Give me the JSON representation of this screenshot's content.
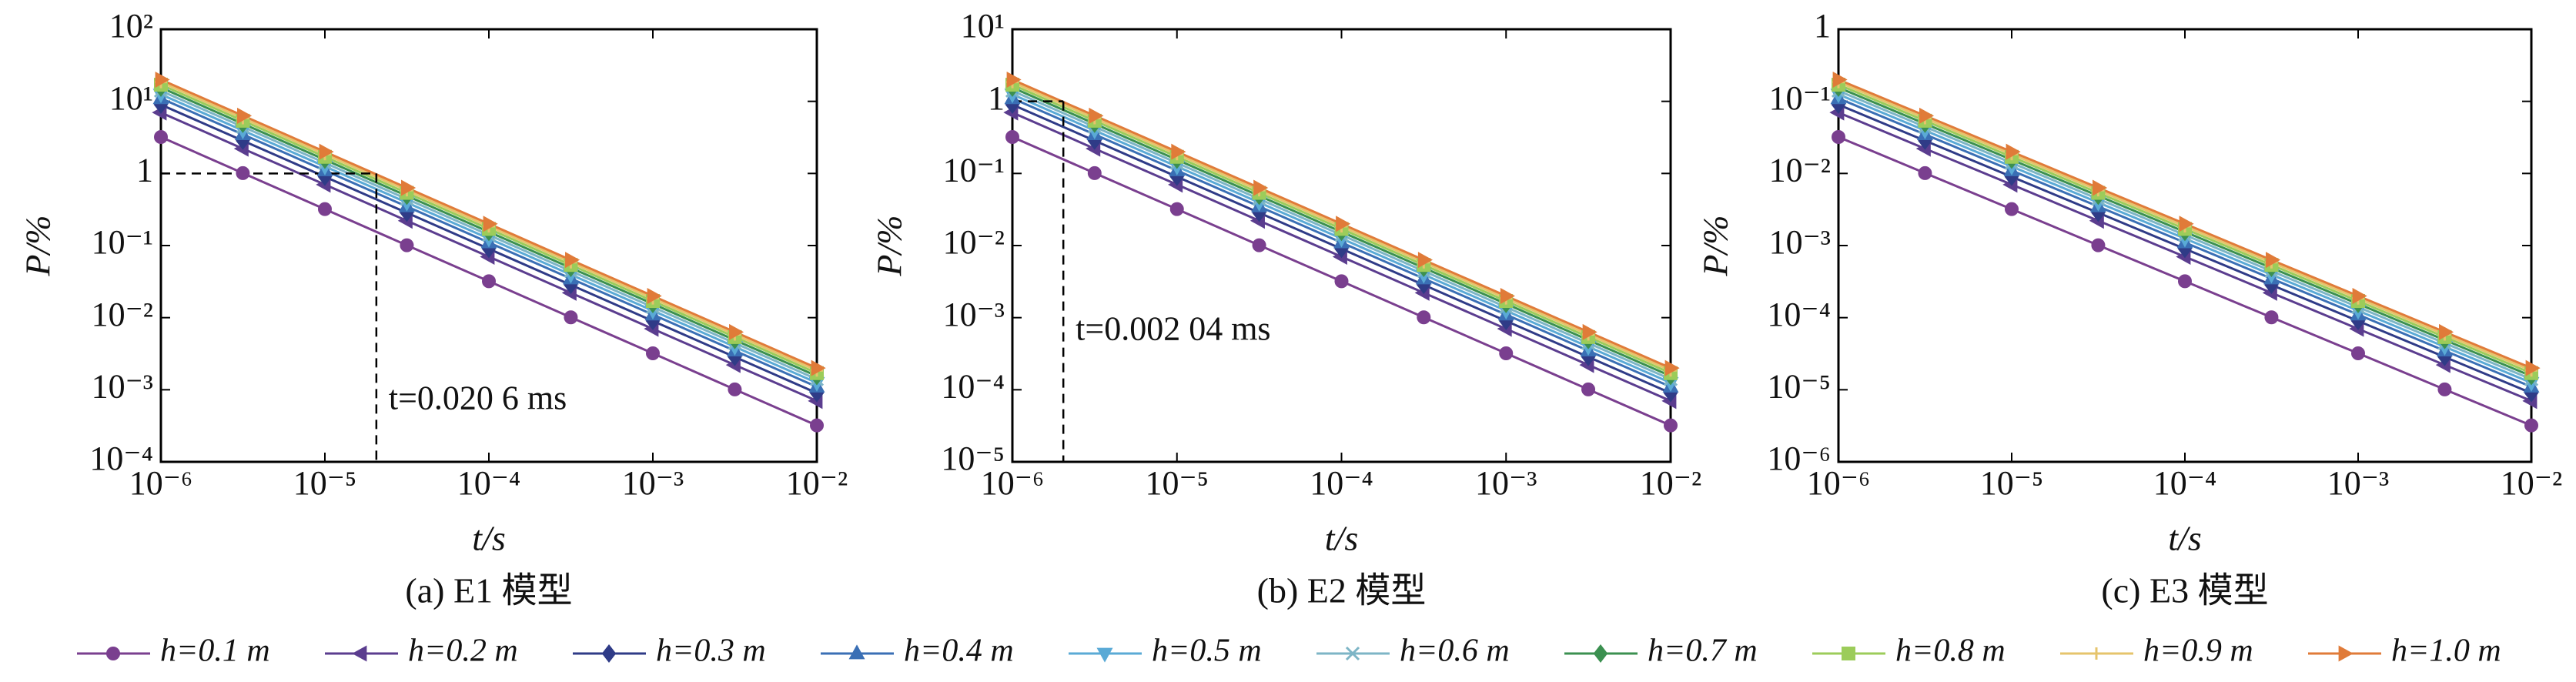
{
  "chart_data": [
    {
      "type": "line",
      "log_x": true,
      "log_y": true,
      "x_label": "t/s",
      "y_label": "P/%",
      "caption": "(a) E1 模型",
      "xlim": [
        1e-06,
        0.01
      ],
      "xticks": [
        {
          "value": 1e-06,
          "label": "10⁻⁶"
        },
        {
          "value": 1e-05,
          "label": "10⁻⁵"
        },
        {
          "value": 0.0001,
          "label": "10⁻⁴"
        },
        {
          "value": 0.001,
          "label": "10⁻³"
        },
        {
          "value": 0.01,
          "label": "10⁻²"
        }
      ],
      "ylim": [
        0.0001,
        100
      ],
      "yticks": [
        {
          "value": 0.0001,
          "label": "10⁻⁴"
        },
        {
          "value": 0.001,
          "label": "10⁻³"
        },
        {
          "value": 0.01,
          "label": "10⁻²"
        },
        {
          "value": 0.1,
          "label": "10⁻¹"
        },
        1,
        {
          "value": 10,
          "label": "10¹"
        },
        {
          "value": 100,
          "label": "10²"
        }
      ],
      "annotation": {
        "text": "t=0.020 6 ms",
        "x": 2.06e-05,
        "y": 1
      },
      "x": [
        1e-06,
        3.16e-06,
        1e-05,
        3.16e-05,
        0.0001,
        0.000316,
        0.001,
        0.00316,
        0.01
      ],
      "series": [
        {
          "name": "h=0.1 m",
          "color": "#7a3f8f",
          "marker": "circle",
          "values": [
            3.2,
            1.01,
            0.32,
            0.101,
            0.032,
            0.0101,
            0.0032,
            0.00101,
            0.00032
          ]
        },
        {
          "name": "h=0.2 m",
          "color": "#5b3d8f",
          "marker": "tri-left",
          "values": [
            7,
            2.21,
            0.7,
            0.221,
            0.07,
            0.0221,
            0.007,
            0.00221,
            0.0007
          ]
        },
        {
          "name": "h=0.3 m",
          "color": "#2f3b87",
          "marker": "diamond",
          "values": [
            9,
            2.85,
            0.9,
            0.285,
            0.09,
            0.0285,
            0.009,
            0.00285,
            0.0009
          ]
        },
        {
          "name": "h=0.4 m",
          "color": "#3a6fb5",
          "marker": "tri-up",
          "values": [
            11,
            3.48,
            1.1,
            0.348,
            0.11,
            0.0348,
            0.011,
            0.00348,
            0.0011
          ]
        },
        {
          "name": "h=0.5 m",
          "color": "#5aaad6",
          "marker": "tri-down",
          "values": [
            12.5,
            3.95,
            1.25,
            0.395,
            0.125,
            0.0395,
            0.0125,
            0.00395,
            0.00125
          ]
        },
        {
          "name": "h=0.6 m",
          "color": "#7db5c6",
          "marker": "x",
          "values": [
            14,
            4.43,
            1.4,
            0.443,
            0.14,
            0.0443,
            0.014,
            0.00443,
            0.0014
          ]
        },
        {
          "name": "h=0.7 m",
          "color": "#3b9050",
          "marker": "diamond",
          "values": [
            15.5,
            4.9,
            1.55,
            0.49,
            0.155,
            0.049,
            0.0155,
            0.0049,
            0.00155
          ]
        },
        {
          "name": "h=0.8 m",
          "color": "#9ccc5a",
          "marker": "square",
          "values": [
            17,
            5.38,
            1.7,
            0.538,
            0.17,
            0.0538,
            0.017,
            0.00538,
            0.0017
          ]
        },
        {
          "name": "h=0.9 m",
          "color": "#e6c46c",
          "marker": "plus",
          "values": [
            18.5,
            5.85,
            1.85,
            0.585,
            0.185,
            0.0585,
            0.0185,
            0.00585,
            0.00185
          ]
        },
        {
          "name": "h=1.0 m",
          "color": "#e07b39",
          "marker": "tri-right",
          "values": [
            20,
            6.32,
            2,
            0.632,
            0.2,
            0.0632,
            0.02,
            0.00632,
            0.002
          ]
        }
      ]
    },
    {
      "type": "line",
      "log_x": true,
      "log_y": true,
      "x_label": "t/s",
      "y_label": "P/%",
      "caption": "(b) E2 模型",
      "xlim": [
        1e-06,
        0.01
      ],
      "xticks": [
        {
          "value": 1e-06,
          "label": "10⁻⁶"
        },
        {
          "value": 1e-05,
          "label": "10⁻⁵"
        },
        {
          "value": 0.0001,
          "label": "10⁻⁴"
        },
        {
          "value": 0.001,
          "label": "10⁻³"
        },
        {
          "value": 0.01,
          "label": "10⁻²"
        }
      ],
      "ylim": [
        1e-05,
        10
      ],
      "yticks": [
        {
          "value": 1e-05,
          "label": "10⁻⁵"
        },
        {
          "value": 0.0001,
          "label": "10⁻⁴"
        },
        {
          "value": 0.001,
          "label": "10⁻³"
        },
        {
          "value": 0.01,
          "label": "10⁻²"
        },
        {
          "value": 0.1,
          "label": "10⁻¹"
        },
        1,
        {
          "value": 10,
          "label": "10¹"
        }
      ],
      "annotation": {
        "text": "t=0.002 04 ms",
        "x": 2.04e-06,
        "y": 1
      },
      "x": [
        1e-06,
        3.16e-06,
        1e-05,
        3.16e-05,
        0.0001,
        0.000316,
        0.001,
        0.00316,
        0.01
      ],
      "series": [
        {
          "color": "#7a3f8f",
          "marker": "circle",
          "values": [
            0.32,
            0.101,
            0.032,
            0.0101,
            0.0032,
            0.00101,
            0.00032,
            0.000101,
            3.2e-05
          ]
        },
        {
          "color": "#5b3d8f",
          "marker": "tri-left",
          "values": [
            0.7,
            0.221,
            0.07,
            0.0221,
            0.007,
            0.00221,
            0.0007,
            0.000221,
            7e-05
          ]
        },
        {
          "color": "#2f3b87",
          "marker": "diamond",
          "values": [
            0.9,
            0.285,
            0.09,
            0.0285,
            0.009,
            0.00285,
            0.0009,
            0.000285,
            9e-05
          ]
        },
        {
          "color": "#3a6fb5",
          "marker": "tri-up",
          "values": [
            1.1,
            0.348,
            0.11,
            0.0348,
            0.011,
            0.00348,
            0.0011,
            0.000348,
            0.00011
          ]
        },
        {
          "color": "#5aaad6",
          "marker": "tri-down",
          "values": [
            1.25,
            0.395,
            0.125,
            0.0395,
            0.0125,
            0.00395,
            0.00125,
            0.000395,
            0.000125
          ]
        },
        {
          "color": "#7db5c6",
          "marker": "x",
          "values": [
            1.4,
            0.443,
            0.14,
            0.0443,
            0.014,
            0.00443,
            0.0014,
            0.000443,
            0.00014
          ]
        },
        {
          "color": "#3b9050",
          "marker": "diamond",
          "values": [
            1.55,
            0.49,
            0.155,
            0.049,
            0.0155,
            0.0049,
            0.00155,
            0.00049,
            0.000155
          ]
        },
        {
          "color": "#9ccc5a",
          "marker": "square",
          "values": [
            1.7,
            0.538,
            0.17,
            0.0538,
            0.017,
            0.00538,
            0.0017,
            0.000538,
            0.00017
          ]
        },
        {
          "color": "#e6c46c",
          "marker": "plus",
          "values": [
            1.85,
            0.585,
            0.185,
            0.0585,
            0.0185,
            0.00585,
            0.00185,
            0.000585,
            0.000185
          ]
        },
        {
          "color": "#e07b39",
          "marker": "tri-right",
          "values": [
            2,
            0.632,
            0.2,
            0.0632,
            0.02,
            0.00632,
            0.002,
            0.000632,
            0.0002
          ]
        }
      ]
    },
    {
      "type": "line",
      "log_x": true,
      "log_y": true,
      "x_label": "t/s",
      "y_label": "P/%",
      "caption": "(c) E3 模型",
      "xlim": [
        1e-06,
        0.01
      ],
      "xticks": [
        {
          "value": 1e-06,
          "label": "10⁻⁶"
        },
        {
          "value": 1e-05,
          "label": "10⁻⁵"
        },
        {
          "value": 0.0001,
          "label": "10⁻⁴"
        },
        {
          "value": 0.001,
          "label": "10⁻³"
        },
        {
          "value": 0.01,
          "label": "10⁻²"
        }
      ],
      "ylim": [
        1e-06,
        1
      ],
      "yticks": [
        {
          "value": 1e-06,
          "label": "10⁻⁶"
        },
        {
          "value": 1e-05,
          "label": "10⁻⁵"
        },
        {
          "value": 0.0001,
          "label": "10⁻⁴"
        },
        {
          "value": 0.001,
          "label": "10⁻³"
        },
        {
          "value": 0.01,
          "label": "10⁻²"
        },
        {
          "value": 0.1,
          "label": "10⁻¹"
        },
        1
      ],
      "x": [
        1e-06,
        3.16e-06,
        1e-05,
        3.16e-05,
        0.0001,
        0.000316,
        0.001,
        0.00316,
        0.01
      ],
      "series": [
        {
          "color": "#7a3f8f",
          "marker": "circle",
          "values": [
            0.032,
            0.0101,
            0.0032,
            0.00101,
            0.00032,
            0.000101,
            3.2e-05,
            1.01e-05,
            3.2e-06
          ]
        },
        {
          "color": "#5b3d8f",
          "marker": "tri-left",
          "values": [
            0.07,
            0.0221,
            0.007,
            0.00221,
            0.0007,
            0.000221,
            7e-05,
            2.21e-05,
            7e-06
          ]
        },
        {
          "color": "#2f3b87",
          "marker": "diamond",
          "values": [
            0.09,
            0.0285,
            0.009,
            0.00285,
            0.0009,
            0.000285,
            9e-05,
            2.85e-05,
            9e-06
          ]
        },
        {
          "color": "#3a6fb5",
          "marker": "tri-up",
          "values": [
            0.11,
            0.0348,
            0.011,
            0.00348,
            0.0011,
            0.000348,
            0.00011,
            3.48e-05,
            1.1e-05
          ]
        },
        {
          "color": "#5aaad6",
          "marker": "tri-down",
          "values": [
            0.125,
            0.0395,
            0.0125,
            0.00395,
            0.00125,
            0.000395,
            0.000125,
            3.95e-05,
            1.25e-05
          ]
        },
        {
          "color": "#7db5c6",
          "marker": "x",
          "values": [
            0.14,
            0.0443,
            0.014,
            0.00443,
            0.0014,
            0.000443,
            0.00014,
            4.43e-05,
            1.4e-05
          ]
        },
        {
          "color": "#3b9050",
          "marker": "diamond",
          "values": [
            0.155,
            0.049,
            0.0155,
            0.0049,
            0.00155,
            0.00049,
            0.000155,
            4.9e-05,
            1.55e-05
          ]
        },
        {
          "color": "#9ccc5a",
          "marker": "square",
          "values": [
            0.17,
            0.0538,
            0.017,
            0.00538,
            0.0017,
            0.000538,
            0.00017,
            5.38e-05,
            1.7e-05
          ]
        },
        {
          "color": "#e6c46c",
          "marker": "plus",
          "values": [
            0.185,
            0.0585,
            0.0185,
            0.00585,
            0.00185,
            0.000585,
            0.000185,
            5.85e-05,
            1.85e-05
          ]
        },
        {
          "color": "#e07b39",
          "marker": "tri-right",
          "values": [
            0.2,
            0.0632,
            0.02,
            0.00632,
            0.002,
            0.000632,
            0.0002,
            6.32e-05,
            2e-05
          ]
        }
      ]
    }
  ]
}
